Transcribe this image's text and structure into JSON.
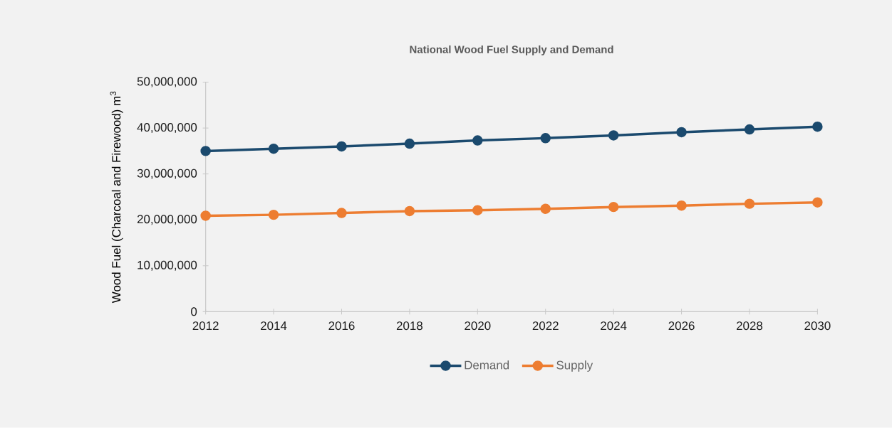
{
  "chart_data": {
    "type": "line",
    "title": "National Wood Fuel Supply and Demand",
    "ylabel": "Wood Fuel  (Charcoal and Firewood) m$^{3}$",
    "x": [
      2012,
      2014,
      2016,
      2018,
      2020,
      2022,
      2024,
      2026,
      2028,
      2030
    ],
    "series": [
      {
        "name": "Demand",
        "color": "#1b4a6e",
        "values": [
          35000000,
          35500000,
          36000000,
          36600000,
          37300000,
          37800000,
          38400000,
          39100000,
          39700000,
          40300000
        ]
      },
      {
        "name": "Supply",
        "color": "#ed7d31",
        "values": [
          20900000,
          21100000,
          21500000,
          21900000,
          22100000,
          22400000,
          22800000,
          23100000,
          23500000,
          23800000
        ]
      }
    ],
    "xlim": [
      2012,
      2030
    ],
    "xticks": [
      2012,
      2014,
      2016,
      2018,
      2020,
      2022,
      2024,
      2026,
      2028,
      2030
    ],
    "ylim": [
      0,
      50000000
    ],
    "yticks": [
      {
        "value": 0,
        "label": "0"
      },
      {
        "value": 10000000,
        "label": "10,000,000"
      },
      {
        "value": 20000000,
        "label": "20,000,000"
      },
      {
        "value": 30000000,
        "label": "30,000,000"
      },
      {
        "value": 40000000,
        "label": "40,000,000"
      },
      {
        "value": 50000000,
        "label": "50,000,000"
      }
    ],
    "legend": "bottom",
    "marker": "circle",
    "line_style": "solid"
  }
}
